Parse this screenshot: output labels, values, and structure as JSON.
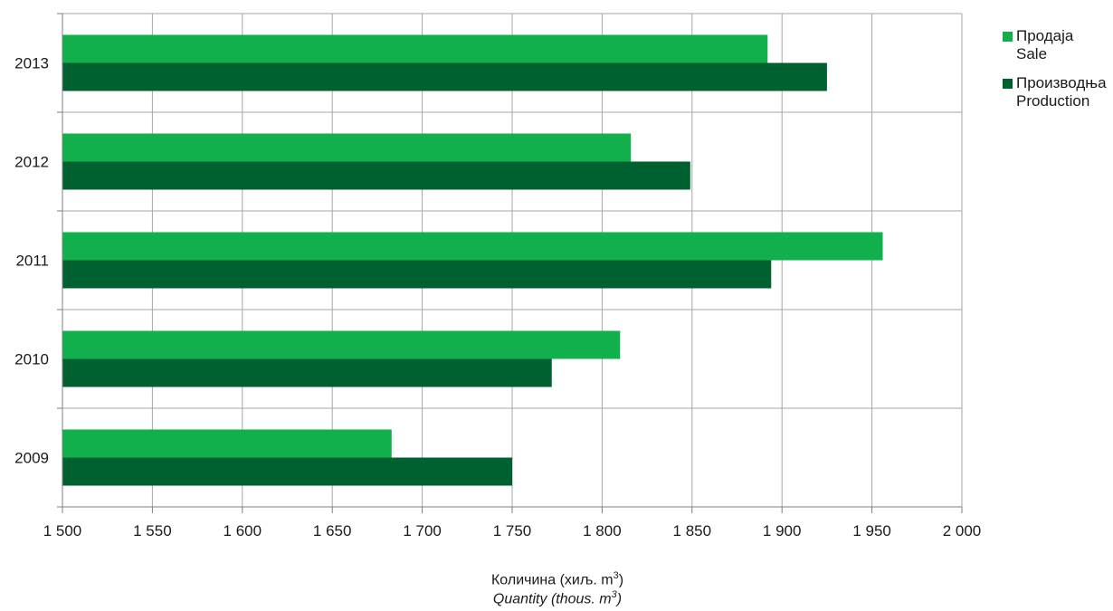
{
  "chart_data": {
    "type": "bar",
    "orientation": "horizontal",
    "categories": [
      "2009",
      "2010",
      "2011",
      "2012",
      "2013"
    ],
    "series": [
      {
        "name": "Продаја / Sale",
        "name_sr": "Продаја",
        "name_en": "Sale",
        "color": "#12b04c",
        "values": [
          1683,
          1810,
          1956,
          1816,
          1892
        ]
      },
      {
        "name": "Производња / Production",
        "name_sr": "Производња",
        "name_en": "Production",
        "color": "#006130",
        "values": [
          1750,
          1772,
          1894,
          1849,
          1925
        ]
      }
    ],
    "xlim": [
      1500,
      2000
    ],
    "x_ticks": [
      1500,
      1550,
      1600,
      1650,
      1700,
      1750,
      1800,
      1850,
      1900,
      1950,
      2000
    ],
    "x_tick_labels": [
      "1 500",
      "1 550",
      "1 600",
      "1 650",
      "1 700",
      "1 750",
      "1 800",
      "1 850",
      "1 900",
      "1 950",
      "2 000"
    ],
    "xlabel_sr": "Количина (хиљ. m",
    "xlabel_en": "Quantity (thous. m",
    "xlabel_sup": "3",
    "xlabel_close": ")",
    "legend_position": "right",
    "grid": true
  }
}
